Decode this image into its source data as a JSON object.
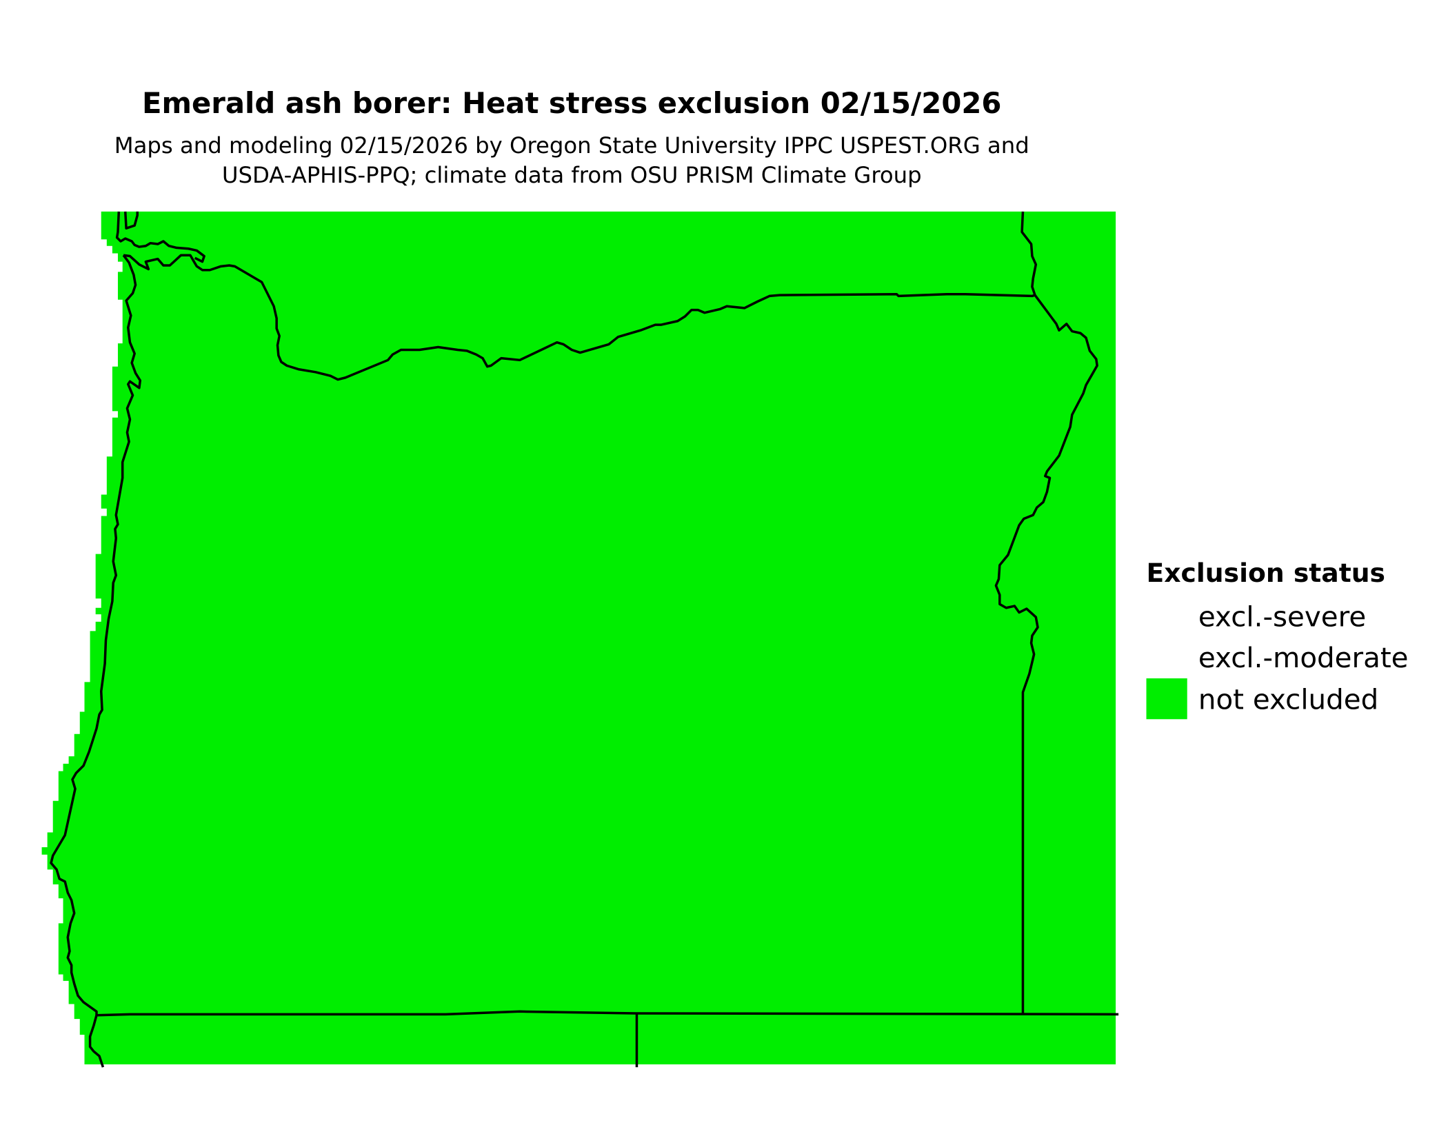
{
  "title": "Emerald ash borer: Heat stress exclusion 02/15/2026",
  "subtitle_line1": "Maps and modeling 02/15/2026 by Oregon State University IPPC USPEST.ORG and",
  "subtitle_line2": "USDA-APHIS-PPQ; climate data from OSU PRISM Climate Group",
  "legend": {
    "title": "Exclusion status",
    "items": [
      {
        "label": "excl.-severe",
        "color": "none"
      },
      {
        "label": "excl.-moderate",
        "color": "none"
      },
      {
        "label": "not excluded",
        "color": "#00EE00"
      }
    ]
  },
  "map": {
    "region": "Oregon",
    "fill_color": "#00EE00",
    "status_shown": "not excluded",
    "border_color": "#000000"
  }
}
